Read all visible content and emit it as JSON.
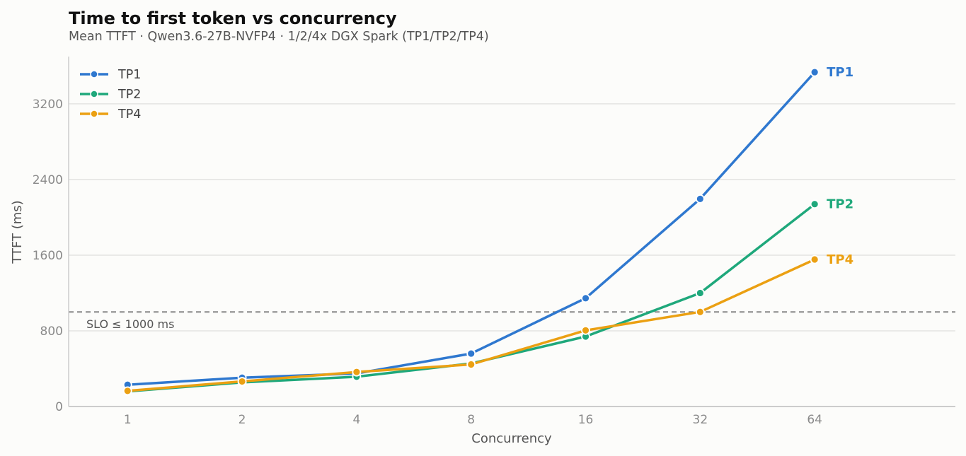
{
  "chart_data": {
    "type": "line",
    "title": "Time to first token vs concurrency",
    "subtitle": "Mean TTFT · Qwen3.6-27B-NVFP4 · 1/2/4x DGX Spark (TP1/TP2/TP4)",
    "xlabel": "Concurrency",
    "ylabel": "TTFT (ms)",
    "x": [
      1,
      2,
      4,
      8,
      16,
      32,
      64
    ],
    "x_tick_labels": [
      "1",
      "2",
      "4",
      "8",
      "16",
      "32",
      "64"
    ],
    "x_scale": "log2",
    "xlim": [
      0.7,
      150
    ],
    "ylim": [
      0,
      3700
    ],
    "y_ticks": [
      0,
      800,
      1600,
      2400,
      3200
    ],
    "y_tick_labels": [
      "0",
      "800",
      "1600",
      "2400",
      "3200"
    ],
    "grid": "horizontal",
    "legend_position": "top-left",
    "series": [
      {
        "name": "TP1",
        "color": "#2f78cf",
        "values": [
          230,
          305,
          350,
          560,
          1145,
          2195,
          3535
        ]
      },
      {
        "name": "TP2",
        "color": "#1fa87b",
        "values": [
          160,
          255,
          315,
          455,
          740,
          1200,
          2140
        ]
      },
      {
        "name": "TP4",
        "color": "#eba012",
        "values": [
          165,
          265,
          365,
          445,
          805,
          1000,
          1555
        ]
      }
    ],
    "reference_line": {
      "y": 1000,
      "label": "SLO ≤ 1000 ms",
      "color": "#888888",
      "style": "dashed"
    }
  }
}
